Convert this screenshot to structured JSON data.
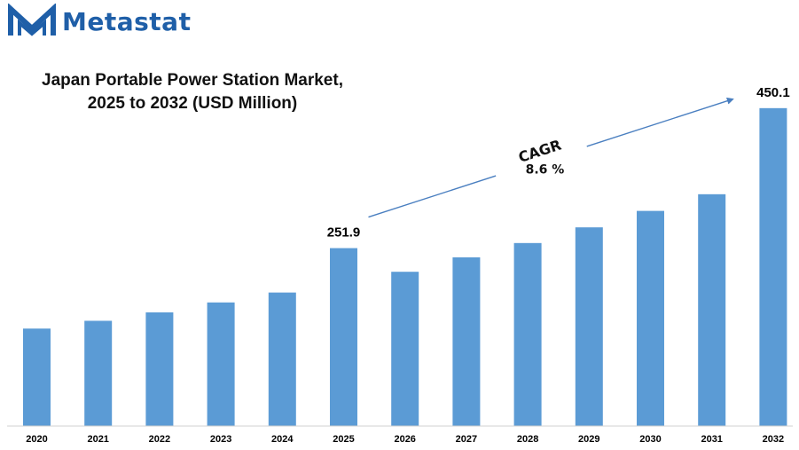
{
  "brand": {
    "name": "Metastat",
    "logo_icon": "m-chevron-logo",
    "color": "#1f5fa8"
  },
  "chart_data": {
    "type": "bar",
    "title": "Japan Portable Power Station Market,",
    "subtitle": "2025 to 2032 (USD Million)",
    "categories": [
      "2020",
      "2021",
      "2022",
      "2023",
      "2024",
      "2025",
      "2026",
      "2027",
      "2028",
      "2029",
      "2030",
      "2031",
      "2032"
    ],
    "series": [
      {
        "values": [
          138,
          149,
          161,
          175,
          189,
          251.9,
          218.4,
          238.9,
          259.1,
          281.3,
          304.6,
          328.2,
          450.1
        ]
      }
    ],
    "data_labels": [
      {
        "category": "2025",
        "text": "251.9"
      },
      {
        "category": "2032",
        "text": "450.1"
      }
    ],
    "annotation": {
      "label": "CAGR",
      "value": "8.6 %"
    },
    "ylim": [
      0,
      470
    ],
    "bar_color": "#5b9bd5",
    "arrow_color": "#4a7fc0",
    "grid": false,
    "legend": "none"
  }
}
